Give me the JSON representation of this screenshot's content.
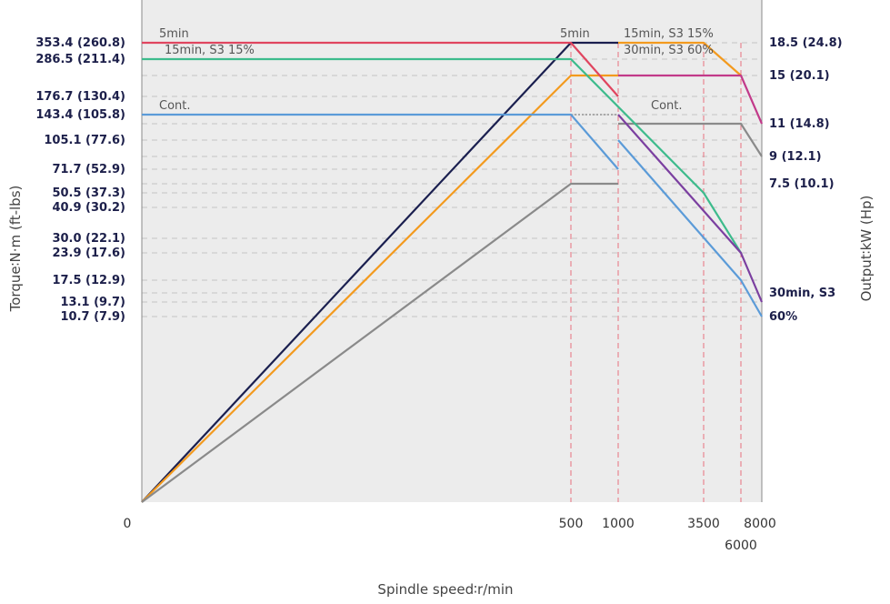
{
  "chart_data": {
    "type": "line",
    "xlabel": "Spindle speed∶r/min",
    "ylabel_left": "Torque∶N·m (ft-lbs)",
    "ylabel_right": "Output∶kW (Hp)",
    "x_ticks": [
      {
        "value": 0,
        "label": "0"
      },
      {
        "value": 500,
        "label": "500"
      },
      {
        "value": 1000,
        "label": "1000"
      },
      {
        "value": 3500,
        "label": "3500"
      },
      {
        "value": 6000,
        "label": "6000"
      },
      {
        "value": 8000,
        "label": "8000"
      }
    ],
    "torque_ticks": [
      {
        "value": 353.4,
        "label": "353.4 (260.8)"
      },
      {
        "value": 286.5,
        "label": "286.5 (211.4)"
      },
      {
        "value": 176.7,
        "label": "176.7 (130.4)"
      },
      {
        "value": 143.4,
        "label": "143.4 (105.8)"
      },
      {
        "value": 105.1,
        "label": "105.1 (77.6)"
      },
      {
        "value": 71.7,
        "label": "71.7 (52.9)"
      },
      {
        "value": 50.5,
        "label": "50.5 (37.3)"
      },
      {
        "value": 40.9,
        "label": "40.9 (30.2)"
      },
      {
        "value": 30.0,
        "label": "30.0 (22.1)"
      },
      {
        "value": 23.9,
        "label": "23.9 (17.6)"
      },
      {
        "value": 17.5,
        "label": "17.5 (12.9)"
      },
      {
        "value": 13.1,
        "label": "13.1 (9.7)"
      },
      {
        "value": 10.7,
        "label": "10.7 (7.9)"
      }
    ],
    "power_ticks": [
      {
        "value": 18.5,
        "label": "18.5 (24.8)"
      },
      {
        "value": 15,
        "label": "15 (20.1)"
      },
      {
        "value": 11,
        "label": "11 (14.8)"
      },
      {
        "value": 9,
        "label": "9 (12.1)"
      },
      {
        "value": 7.5,
        "label": "7.5 (10.1)"
      },
      {
        "value": 3.9,
        "label": "30min, S3"
      },
      {
        "value": 3.2,
        "label": "60%"
      }
    ],
    "torque_series": [
      {
        "color": "#e0455f",
        "points": [
          [
            0,
            353.4
          ],
          [
            500,
            353.4
          ],
          [
            1000,
            176.7
          ]
        ]
      },
      {
        "color": "#3dbb8c",
        "points": [
          [
            0,
            286.5
          ],
          [
            500,
            286.5
          ],
          [
            3500,
            50.5
          ],
          [
            6000,
            23.9
          ]
        ]
      },
      {
        "color": "#5b9bd8",
        "points": [
          [
            0,
            143.4
          ],
          [
            500,
            143.4
          ],
          [
            1000,
            71.7
          ]
        ]
      },
      {
        "color": "#5b9bd8",
        "points": [
          [
            1000,
            105.1
          ],
          [
            6000,
            17.5
          ],
          [
            8000,
            10.7
          ]
        ]
      },
      {
        "color": "#7b3fa0",
        "points": [
          [
            1000,
            143.4
          ],
          [
            6000,
            23.9
          ],
          [
            8000,
            13.1
          ]
        ]
      }
    ],
    "power_series": [
      {
        "color": "#1a1f4f",
        "points": [
          [
            0,
            0
          ],
          [
            500,
            18.5
          ],
          [
            1000,
            18.5
          ]
        ]
      },
      {
        "color": "#f39a1e",
        "points": [
          [
            0,
            0
          ],
          [
            500,
            15
          ],
          [
            1000,
            15
          ]
        ]
      },
      {
        "color": "#f39a1e",
        "points": [
          [
            1000,
            18.5
          ],
          [
            3500,
            18.5
          ],
          [
            6000,
            15
          ]
        ]
      },
      {
        "color": "#c23a8a",
        "points": [
          [
            1000,
            15
          ],
          [
            6000,
            15
          ],
          [
            8000,
            11
          ]
        ]
      },
      {
        "color": "#8a8a8a",
        "points": [
          [
            0,
            0
          ],
          [
            500,
            7.5
          ],
          [
            1000,
            7.5
          ]
        ]
      },
      {
        "color": "#8a8a8a",
        "points": [
          [
            1000,
            11
          ],
          [
            6000,
            11
          ],
          [
            8000,
            9
          ]
        ]
      }
    ],
    "annotations": [
      {
        "text": "5min",
        "x": 0,
        "yt": 353.4
      },
      {
        "text": "15min, S3 15%",
        "x": 0,
        "yt": 286.5
      },
      {
        "text": "Cont.",
        "x": 0,
        "yt": 143.4
      },
      {
        "text": "5min",
        "x": 500,
        "yt": 353.4
      },
      {
        "text": "15min, S3 15%",
        "x": 1000,
        "yt": 353.4
      },
      {
        "text": "30min, S3 60%",
        "x": 1000,
        "yt": 286.5
      },
      {
        "text": "Cont.",
        "x": 1000,
        "yt": 143.4
      }
    ]
  }
}
